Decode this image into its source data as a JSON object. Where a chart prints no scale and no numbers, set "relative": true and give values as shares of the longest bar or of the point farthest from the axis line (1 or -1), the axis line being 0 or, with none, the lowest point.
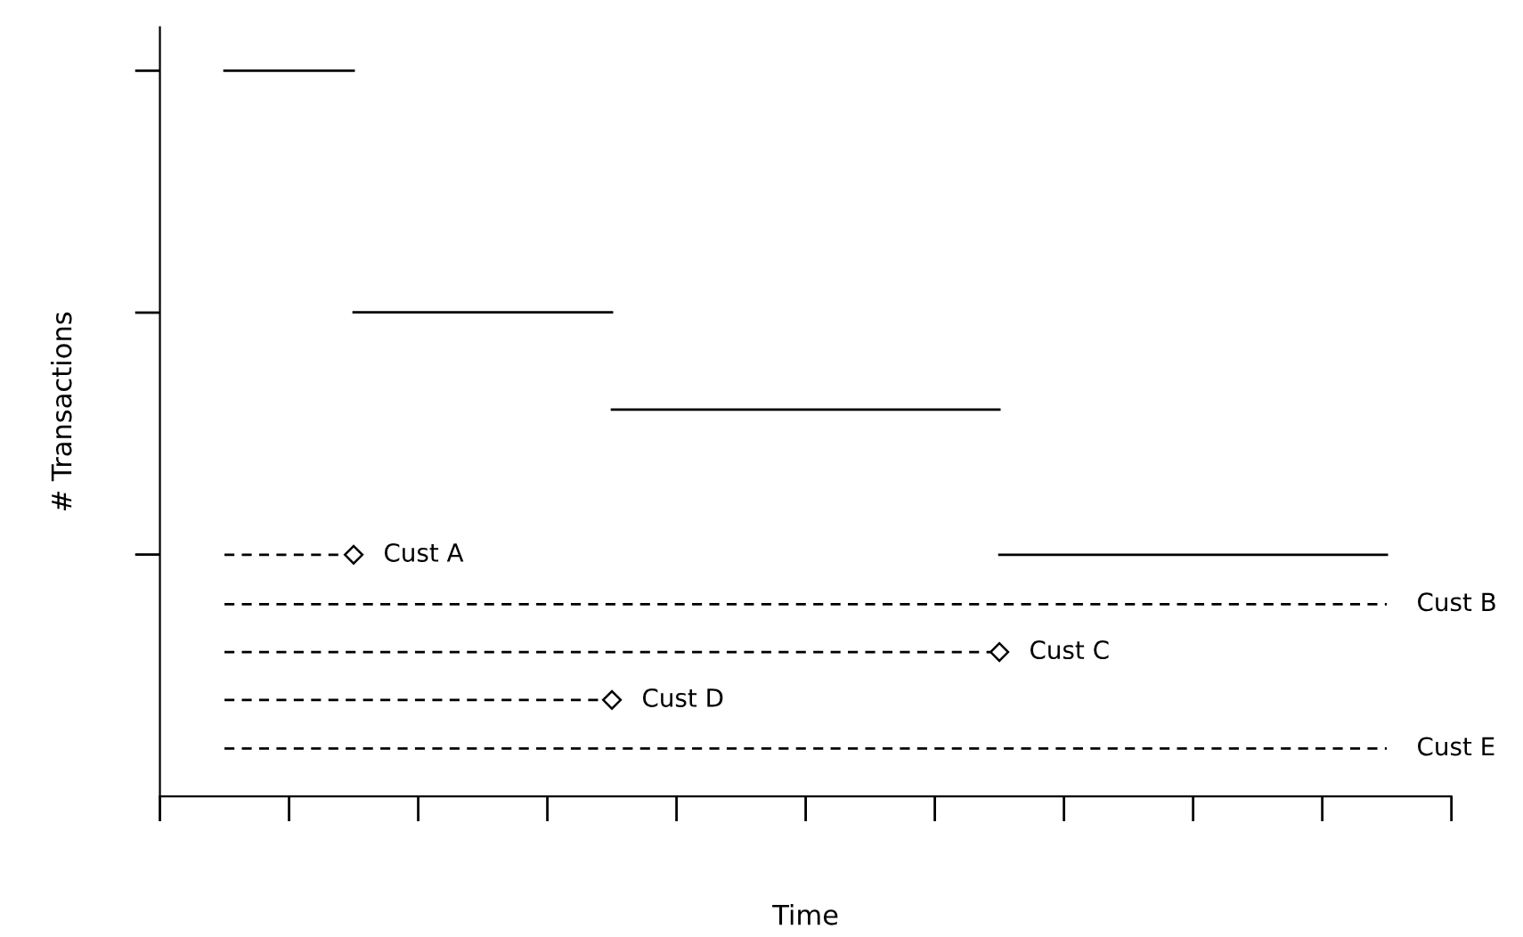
{
  "chart_data": {
    "type": "step",
    "relative": true,
    "xlabel": "Time",
    "ylabel": "# Transactions",
    "categories": [
      null,
      null,
      null,
      null,
      null,
      null,
      null,
      null,
      null,
      null
    ],
    "legend": false,
    "grid": false,
    "series": [
      {
        "color": "#000000",
        "line_style": "solid",
        "marker": "none",
        "values": [
          1,
          0.667,
          0.667,
          0.533,
          0.533,
          0.533,
          0.333,
          0.333,
          0.333,
          0.333
        ]
      },
      {
        "type": "line",
        "name": "Cust A",
        "color": "#000000",
        "line_style": "dashed",
        "marker": "diamond",
        "values": [
          0.333,
          0.333,
          null,
          null,
          null,
          null,
          null,
          null,
          null,
          null
        ]
      },
      {
        "type": "line",
        "name": "Cust B",
        "color": "#000000",
        "line_style": "dashed",
        "marker": "none",
        "values": [
          0.265,
          0.265,
          0.265,
          0.265,
          0.265,
          0.265,
          0.265,
          0.265,
          0.265,
          0.265
        ]
      },
      {
        "type": "line",
        "name": "Cust C",
        "color": "#000000",
        "line_style": "dashed",
        "marker": "diamond",
        "values": [
          0.199,
          null,
          null,
          null,
          null,
          null,
          0.199,
          null,
          null,
          null
        ]
      },
      {
        "type": "line",
        "name": "Cust D",
        "color": "#000000",
        "line_style": "dashed",
        "marker": "diamond",
        "values": [
          0.133,
          null,
          null,
          0.133,
          null,
          null,
          null,
          null,
          null,
          null
        ]
      },
      {
        "type": "line",
        "name": "Cust E",
        "color": "#000000",
        "line_style": "dashed",
        "marker": "none",
        "values": [
          0.066,
          0.066,
          0.066,
          0.066,
          0.066,
          0.066,
          0.066,
          0.066,
          0.066,
          0.066
        ]
      }
    ]
  }
}
